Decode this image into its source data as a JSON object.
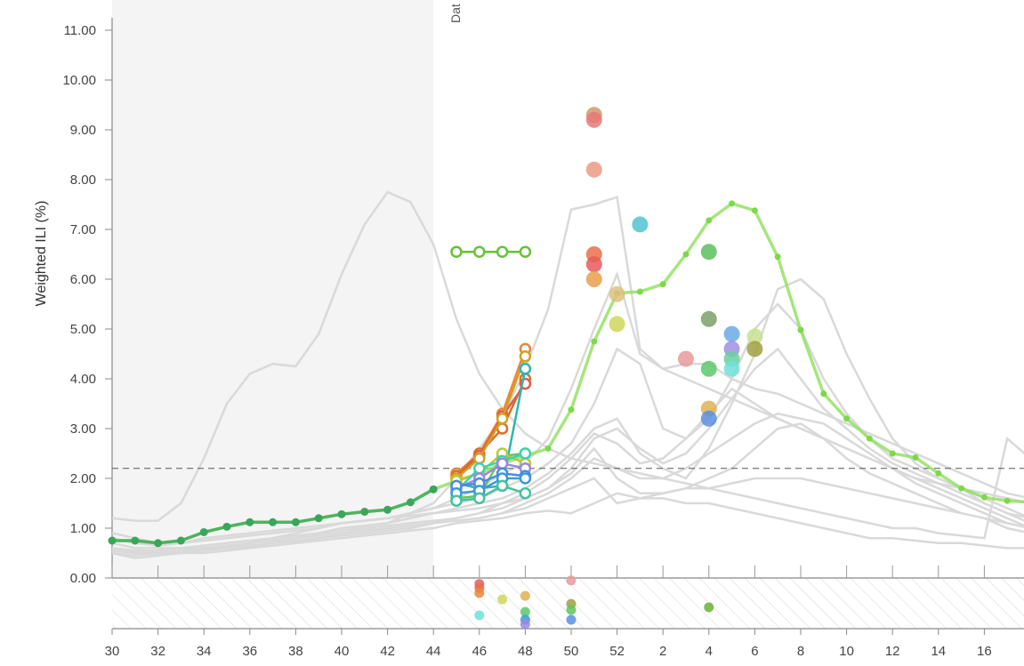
{
  "chart_data": {
    "type": "line",
    "ylabel": "Weighted ILI (%)",
    "date_label": "Dat",
    "ylim": [
      0,
      11
    ],
    "yticks": [
      "0.00",
      "1.00",
      "2.00",
      "3.00",
      "4.00",
      "5.00",
      "6.00",
      "7.00",
      "8.00",
      "9.00",
      "10.00",
      "11.00"
    ],
    "weeks": [
      30,
      31,
      32,
      33,
      34,
      35,
      36,
      37,
      38,
      39,
      40,
      41,
      42,
      43,
      44,
      45,
      46,
      47,
      48,
      49,
      50,
      51,
      52,
      1,
      2,
      3,
      4,
      5,
      6,
      7,
      8,
      9,
      10,
      11,
      12,
      13,
      14,
      15,
      16,
      17,
      18
    ],
    "xtick_labels": [
      "30",
      "32",
      "34",
      "36",
      "38",
      "40",
      "42",
      "44",
      "46",
      "48",
      "50",
      "52",
      "2",
      "4",
      "6",
      "8",
      "10",
      "12",
      "14",
      "16"
    ],
    "baseline": 2.2,
    "current_week": 44,
    "colors": {
      "observed": "#3aa65a",
      "highlight": "#8ee05a",
      "past": "#d9d9d9",
      "shade": "#f4f4f4"
    },
    "past_seasons": [
      [
        1.2,
        1.15,
        1.15,
        1.5,
        2.4,
        3.5,
        4.1,
        4.3,
        4.25,
        4.9,
        6.1,
        7.1,
        7.75,
        7.55,
        6.7,
        5.2,
        4.1,
        3.4,
        2.9,
        2.6,
        2.4,
        2.3,
        2.2,
        2.1,
        2.0,
        1.9,
        1.8,
        1.7,
        1.6,
        1.5,
        1.4,
        1.3,
        1.2,
        1.1,
        1.0,
        1.0,
        0.9,
        0.85,
        0.8,
        2.8,
        2.4
      ],
      [
        0.6,
        0.5,
        0.5,
        0.55,
        0.6,
        0.6,
        0.7,
        0.75,
        0.8,
        0.9,
        1.0,
        1.05,
        1.1,
        1.3,
        1.5,
        2.0,
        2.6,
        3.2,
        4.2,
        5.4,
        7.4,
        7.5,
        7.65,
        4.6,
        4.2,
        4.0,
        3.8,
        3.6,
        3.4,
        3.2,
        3.0,
        2.8,
        2.6,
        2.4,
        2.2,
        2.0,
        1.9,
        1.8,
        1.7,
        1.6,
        1.5
      ],
      [
        0.8,
        0.7,
        0.65,
        0.7,
        0.8,
        0.85,
        0.9,
        0.95,
        1.0,
        1.05,
        1.1,
        1.15,
        1.2,
        1.3,
        1.4,
        1.6,
        1.8,
        2.1,
        2.3,
        2.8,
        3.8,
        5.0,
        6.1,
        4.5,
        4.2,
        4.3,
        4.3,
        4.0,
        3.8,
        3.7,
        3.5,
        3.3,
        3.1,
        2.9,
        2.7,
        2.5,
        2.3,
        2.1,
        1.9,
        1.7,
        1.6
      ],
      [
        0.9,
        0.8,
        0.7,
        0.7,
        0.75,
        0.8,
        0.85,
        0.9,
        0.95,
        1.0,
        1.1,
        1.15,
        1.2,
        1.3,
        1.4,
        1.5,
        1.6,
        1.8,
        2.0,
        2.3,
        2.7,
        3.5,
        4.6,
        4.3,
        3.0,
        2.8,
        3.2,
        4.0,
        5.0,
        5.5,
        5.0,
        4.0,
        3.3,
        2.8,
        2.4,
        2.2,
        2.0,
        1.8,
        1.6,
        1.4,
        1.2
      ],
      [
        0.7,
        0.6,
        0.6,
        0.6,
        0.65,
        0.7,
        0.75,
        0.8,
        0.85,
        0.9,
        1.0,
        1.05,
        1.1,
        1.2,
        1.3,
        1.4,
        1.5,
        1.6,
        1.8,
        2.1,
        2.5,
        3.0,
        3.2,
        2.5,
        2.2,
        2.0,
        2.6,
        3.5,
        4.5,
        5.8,
        6.0,
        5.6,
        4.5,
        3.6,
        2.8,
        2.3,
        2.0,
        1.8,
        1.5,
        1.3,
        1.1
      ],
      [
        0.5,
        0.45,
        0.5,
        0.55,
        0.6,
        0.65,
        0.7,
        0.8,
        0.9,
        1.0,
        1.1,
        1.15,
        1.2,
        1.25,
        1.3,
        1.35,
        1.4,
        1.5,
        1.6,
        1.8,
        2.2,
        2.8,
        3.0,
        2.6,
        2.3,
        2.5,
        3.0,
        3.6,
        4.2,
        4.6,
        4.0,
        3.4,
        3.0,
        2.6,
        2.3,
        2.1,
        1.9,
        1.7,
        1.5,
        1.3,
        1.2
      ],
      [
        0.6,
        0.55,
        0.55,
        0.6,
        0.6,
        0.65,
        0.7,
        0.75,
        0.8,
        0.85,
        0.95,
        1.0,
        1.05,
        1.1,
        1.15,
        1.2,
        1.3,
        1.5,
        1.7,
        2.0,
        2.4,
        2.9,
        2.7,
        2.3,
        2.4,
        2.8,
        3.3,
        3.8,
        3.5,
        3.2,
        3.0,
        2.8,
        2.6,
        2.4,
        2.2,
        2.0,
        1.8,
        1.6,
        1.4,
        1.2,
        1.0
      ],
      [
        0.5,
        0.4,
        0.45,
        0.5,
        0.5,
        0.55,
        0.6,
        0.65,
        0.7,
        0.8,
        0.9,
        0.95,
        1.0,
        1.05,
        1.1,
        1.15,
        1.2,
        1.3,
        1.5,
        1.7,
        2.0,
        2.4,
        2.2,
        2.0,
        2.0,
        2.2,
        2.5,
        2.8,
        3.1,
        3.3,
        3.2,
        3.1,
        2.8,
        2.5,
        2.2,
        1.9,
        1.7,
        1.5,
        1.3,
        1.1,
        1.0
      ],
      [
        0.55,
        0.5,
        0.5,
        0.55,
        0.55,
        0.6,
        0.65,
        0.7,
        0.75,
        0.8,
        0.9,
        0.95,
        1.0,
        1.05,
        1.1,
        1.2,
        1.3,
        1.4,
        1.6,
        1.8,
        2.1,
        2.6,
        2.0,
        1.7,
        1.7,
        1.8,
        2.0,
        2.2,
        2.6,
        3.0,
        3.1,
        2.8,
        2.4,
        2.1,
        1.9,
        1.7,
        1.5,
        1.3,
        1.2,
        1.0,
        0.9
      ],
      [
        0.6,
        0.55,
        0.55,
        0.6,
        0.6,
        0.62,
        0.65,
        0.7,
        0.75,
        0.8,
        0.85,
        0.9,
        0.95,
        1.0,
        1.1,
        1.15,
        1.2,
        1.3,
        1.4,
        1.6,
        1.8,
        2.0,
        1.5,
        1.6,
        1.7,
        1.8,
        1.8,
        1.9,
        2.0,
        2.0,
        2.0,
        1.9,
        1.8,
        1.7,
        1.6,
        1.5,
        1.4,
        1.3,
        1.2,
        1.1,
        1.0
      ],
      [
        0.55,
        0.5,
        0.5,
        0.5,
        0.55,
        0.6,
        0.62,
        0.65,
        0.7,
        0.75,
        0.8,
        0.85,
        0.9,
        0.95,
        1.0,
        1.1,
        1.15,
        1.2,
        1.3,
        1.35,
        1.3,
        1.5,
        1.7,
        1.6,
        1.6,
        1.5,
        1.5,
        1.4,
        1.3,
        1.2,
        1.1,
        1.0,
        0.9,
        0.8,
        0.8,
        0.75,
        0.7,
        0.7,
        0.65,
        0.6,
        0.6
      ]
    ],
    "observed": [
      0.75,
      0.75,
      0.7,
      0.75,
      0.92,
      1.03,
      1.12,
      1.12,
      1.12,
      1.2,
      1.28,
      1.33,
      1.37,
      1.52,
      1.78
    ],
    "highlight_season": [
      0.75,
      0.75,
      0.7,
      0.75,
      0.92,
      1.03,
      1.12,
      1.12,
      1.12,
      1.2,
      1.28,
      1.33,
      1.37,
      1.52,
      1.78,
      1.95,
      2.1,
      2.3,
      2.45,
      2.6,
      3.38,
      4.75,
      5.72,
      5.75,
      5.9,
      6.5,
      7.18,
      7.52,
      7.38,
      6.45,
      4.98,
      3.7,
      3.2,
      2.8,
      2.5,
      2.42,
      2.1,
      1.8,
      1.62,
      1.55,
      1.52
    ],
    "forecast_weeks": [
      45,
      46,
      47,
      48
    ],
    "forecasts": [
      {
        "color": "#e8873a",
        "values": [
          2.1,
          2.5,
          3.3,
          4.6
        ]
      },
      {
        "color": "#d9702a",
        "values": [
          2.05,
          2.5,
          3.0,
          4.0
        ]
      },
      {
        "color": "#e25a4a",
        "values": [
          2.0,
          2.45,
          3.25,
          3.9
        ]
      },
      {
        "color": "#d4a020",
        "values": [
          2.0,
          2.4,
          3.2,
          4.45
        ]
      },
      {
        "color": "#2fb5b5",
        "values": [
          1.9,
          1.8,
          1.85,
          4.2
        ]
      },
      {
        "color": "#5cc85c",
        "values": [
          1.6,
          1.65,
          2.45,
          2.5
        ]
      },
      {
        "color": "#b8c830",
        "values": [
          1.95,
          2.1,
          2.5,
          2.3
        ]
      },
      {
        "color": "#40d0b0",
        "values": [
          1.75,
          2.2,
          2.35,
          2.5
        ]
      },
      {
        "color": "#9a88e0",
        "values": [
          1.8,
          2.0,
          2.3,
          2.2
        ]
      },
      {
        "color": "#4a8ae0",
        "values": [
          1.85,
          1.9,
          2.1,
          2.05
        ]
      },
      {
        "color": "#3a9ad8",
        "values": [
          1.7,
          1.75,
          2.0,
          2.0
        ]
      },
      {
        "color": "#48c0a0",
        "values": [
          1.55,
          1.6,
          1.85,
          1.7
        ]
      },
      {
        "color": "#6ac03a",
        "values": [
          6.55,
          6.55,
          6.55,
          6.55
        ]
      }
    ],
    "peak_points": [
      {
        "week": 51,
        "value": 9.3,
        "color": "#cf9a6a"
      },
      {
        "week": 51,
        "value": 9.2,
        "color": "#e8787a"
      },
      {
        "week": 51,
        "value": 8.2,
        "color": "#eb9a82"
      },
      {
        "week": 51,
        "value": 6.5,
        "color": "#e8704a"
      },
      {
        "week": 51,
        "value": 6.3,
        "color": "#e85a5a"
      },
      {
        "week": 51,
        "value": 6.0,
        "color": "#e8a050"
      },
      {
        "week": 52,
        "value": 5.7,
        "color": "#e0c080"
      },
      {
        "week": 52,
        "value": 5.1,
        "color": "#cfd65a"
      },
      {
        "week": 1,
        "value": 7.1,
        "color": "#4fc3cf"
      },
      {
        "week": 3,
        "value": 4.4,
        "color": "#e89a9a"
      },
      {
        "week": 4,
        "value": 6.55,
        "color": "#5cbf5c"
      },
      {
        "week": 4,
        "value": 5.2,
        "color": "#7aa06a"
      },
      {
        "week": 4,
        "value": 4.2,
        "color": "#5cc86a"
      },
      {
        "week": 4,
        "value": 3.4,
        "color": "#e0b050"
      },
      {
        "week": 4,
        "value": 3.2,
        "color": "#5a8fe0"
      },
      {
        "week": 5,
        "value": 4.9,
        "color": "#6aaae8"
      },
      {
        "week": 5,
        "value": 4.6,
        "color": "#a090e0"
      },
      {
        "week": 5,
        "value": 4.4,
        "color": "#6ad0a0"
      },
      {
        "week": 5,
        "value": 4.2,
        "color": "#70e0d8"
      },
      {
        "week": 6,
        "value": 4.85,
        "color": "#c8e090"
      },
      {
        "week": 6,
        "value": 4.6,
        "color": "#a0a040"
      }
    ],
    "onset_points": [
      {
        "week": 46,
        "value": -0.12,
        "color": "#e85a5a"
      },
      {
        "week": 46,
        "value": -0.2,
        "color": "#e8704a"
      },
      {
        "week": 46,
        "value": -0.3,
        "color": "#e8873a"
      },
      {
        "week": 46,
        "value": -0.75,
        "color": "#70e0d8"
      },
      {
        "week": 47,
        "value": -0.43,
        "color": "#cfd65a"
      },
      {
        "week": 48,
        "value": -0.36,
        "color": "#e0b050"
      },
      {
        "week": 48,
        "value": -0.68,
        "color": "#5cc86a"
      },
      {
        "week": 48,
        "value": -0.84,
        "color": "#3a9ad8"
      },
      {
        "week": 48,
        "value": -0.93,
        "color": "#9a88e0"
      },
      {
        "week": 50,
        "value": -0.05,
        "color": "#e89a9a"
      },
      {
        "week": 50,
        "value": -0.52,
        "color": "#a0a040"
      },
      {
        "week": 50,
        "value": -0.64,
        "color": "#5cc85c"
      },
      {
        "week": 50,
        "value": -0.84,
        "color": "#5a8fe0"
      },
      {
        "week": 4,
        "value": -0.59,
        "color": "#6ab03a"
      }
    ]
  }
}
